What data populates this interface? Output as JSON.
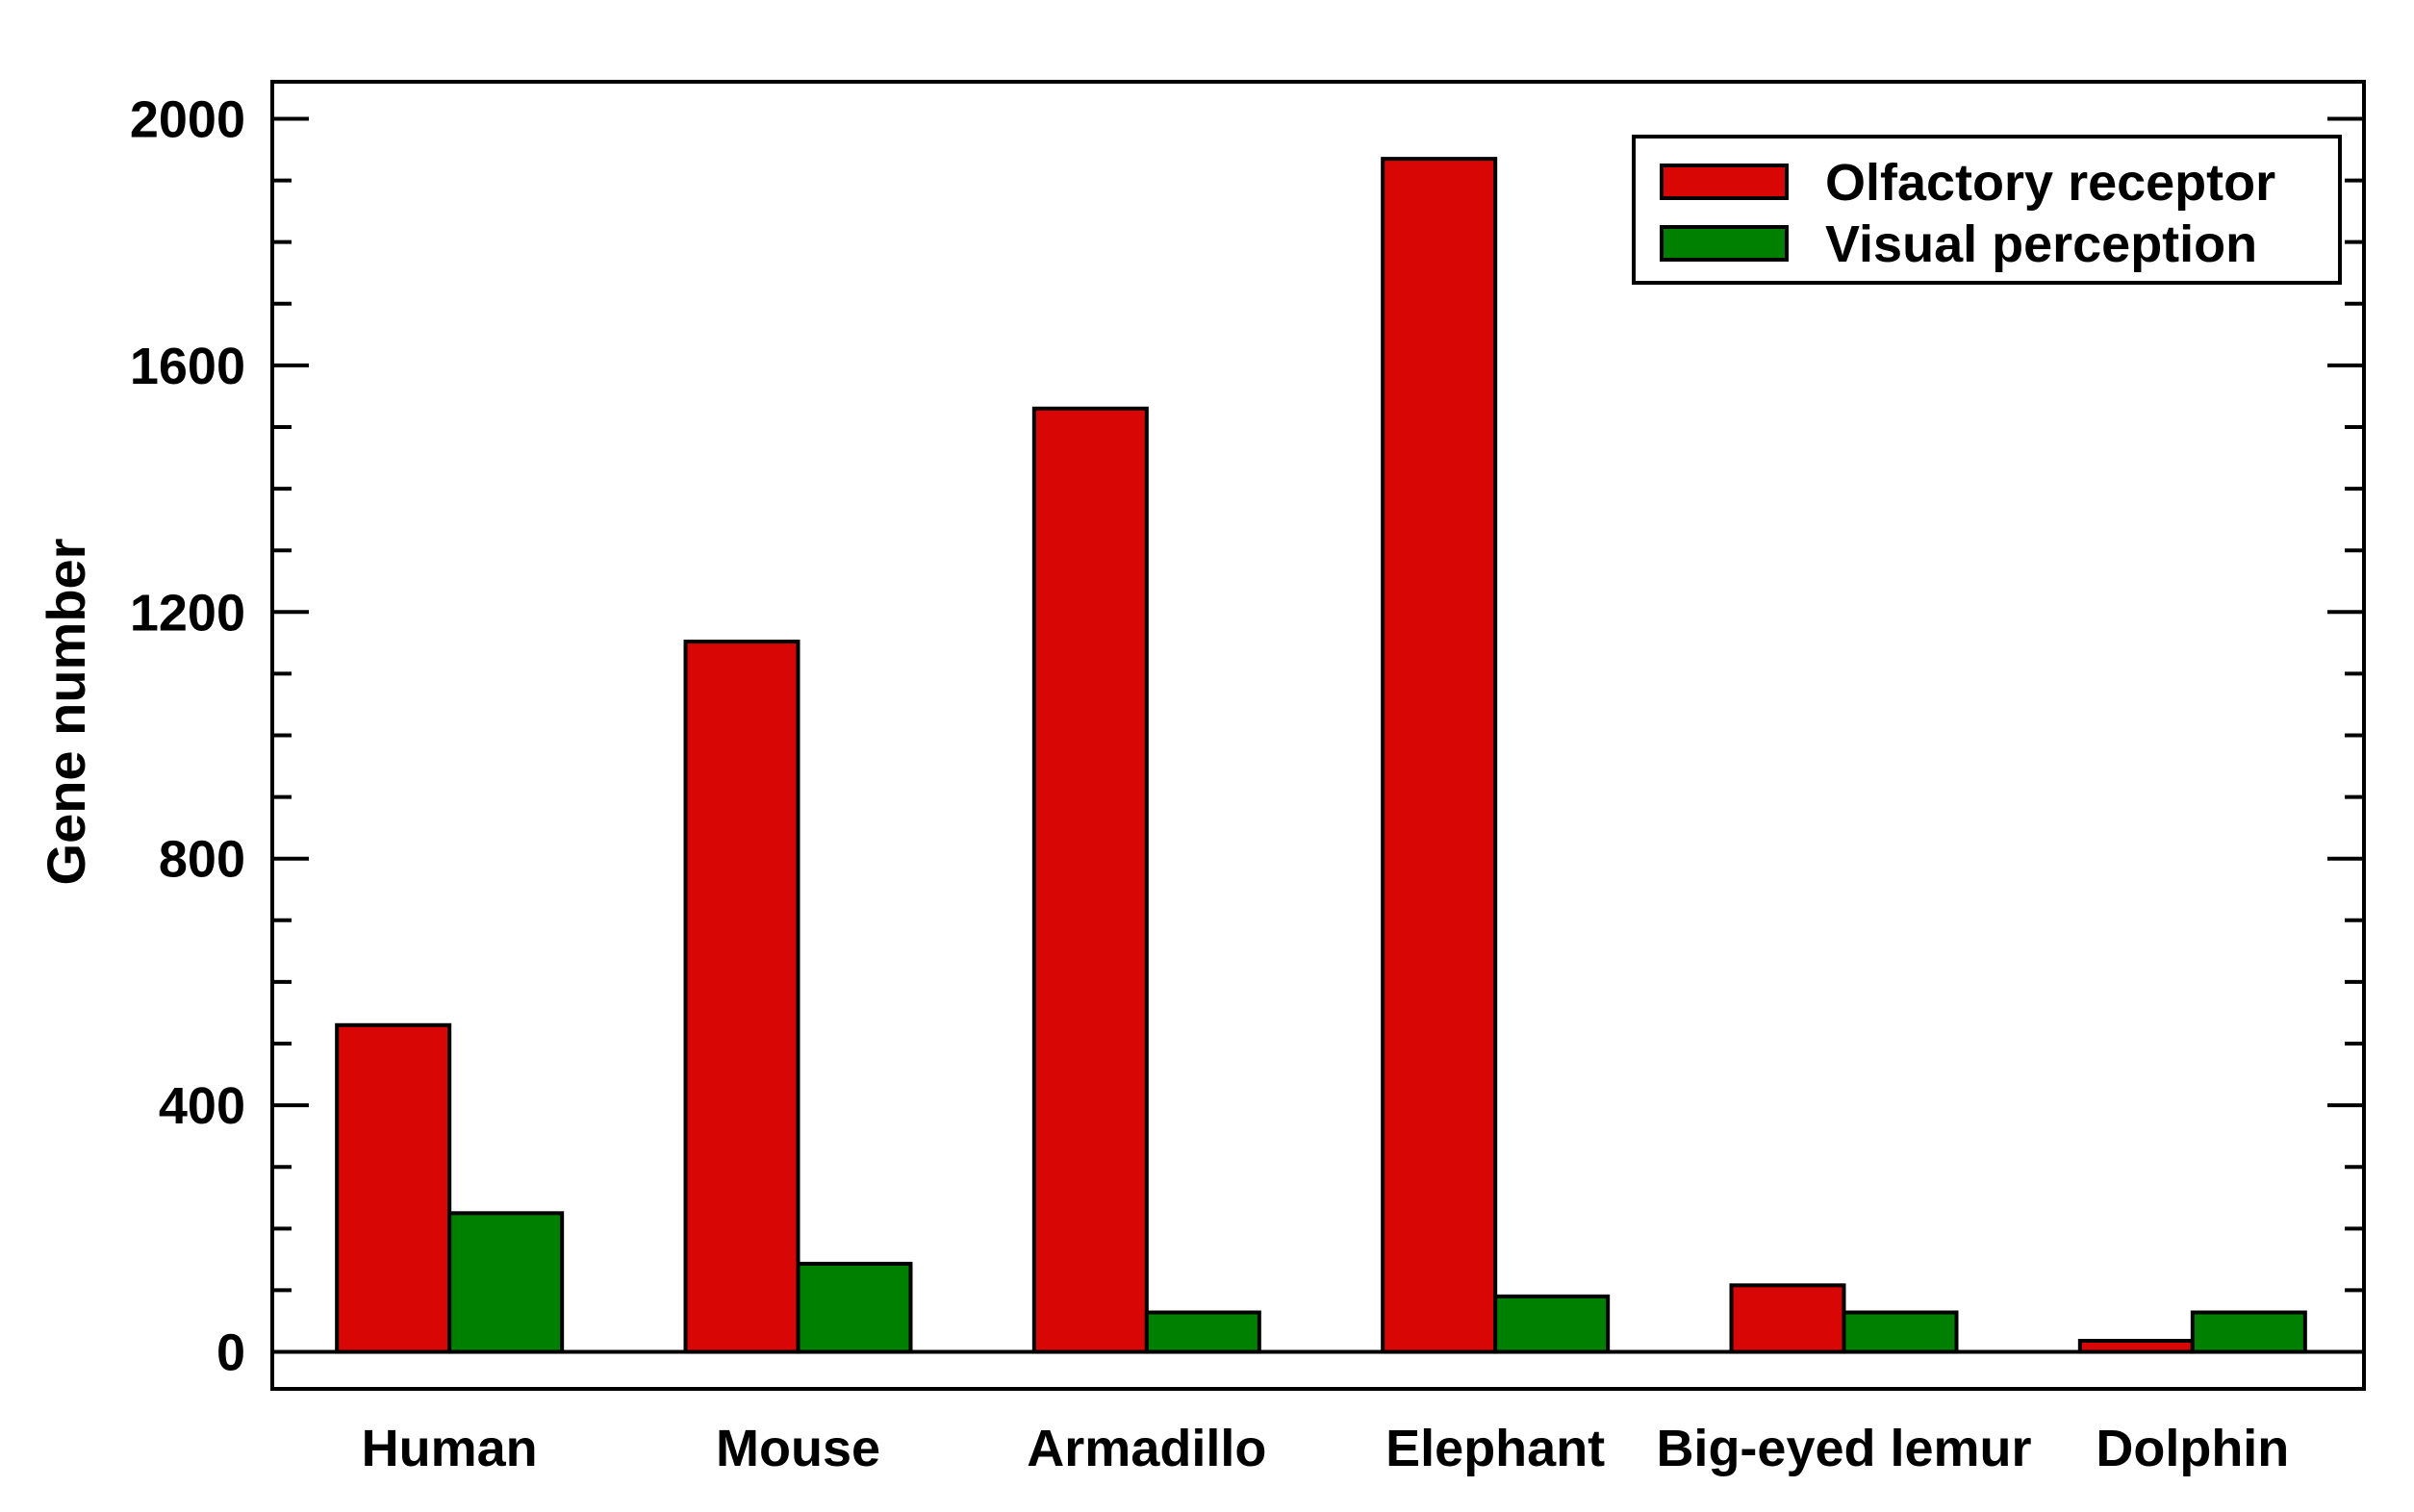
{
  "chart_data": {
    "type": "bar",
    "title": "",
    "xlabel": "",
    "ylabel": "Gene number",
    "ylim": [
      -60,
      2060
    ],
    "yticks": [
      0,
      400,
      800,
      1200,
      1600,
      2000
    ],
    "y_minor_step": 100,
    "grid": false,
    "legend_position": "top-right",
    "categories": [
      "Human",
      "Mouse",
      "Armadillo",
      "Elephant",
      "Big-eyed lemur",
      "Dolphin"
    ],
    "series": [
      {
        "name": "Olfactory receptor",
        "color": "#d90606",
        "values": [
          530,
          1152,
          1530,
          1935,
          108,
          18
        ]
      },
      {
        "name": "Visual perception",
        "color": "#008000",
        "values": [
          225,
          143,
          64,
          90,
          64,
          64
        ]
      }
    ]
  }
}
